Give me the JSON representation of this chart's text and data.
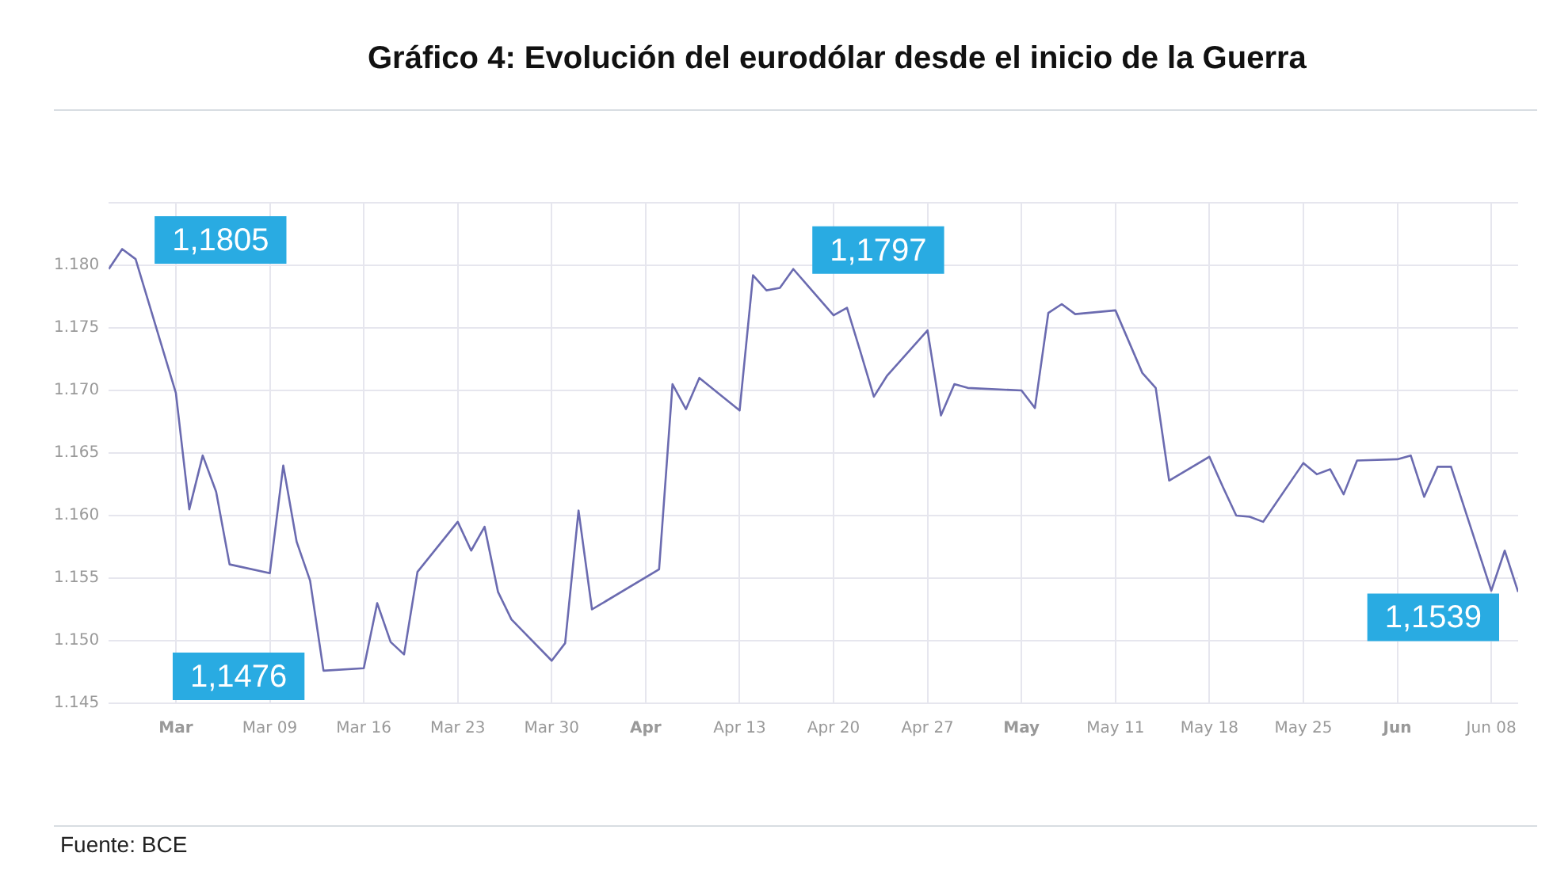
{
  "chart_data": {
    "type": "line",
    "title": "Gráfico 4: Evolución del eurodólar desde el inicio de la Guerra",
    "x": [
      "--02-25",
      "--02-26",
      "--02-27",
      "--03-02",
      "--03-03",
      "--03-04",
      "--03-05",
      "--03-06",
      "--03-09",
      "--03-10",
      "--03-11",
      "--03-12",
      "--03-13",
      "--03-16",
      "--03-17",
      "--03-18",
      "--03-19",
      "--03-20",
      "--03-23",
      "--03-24",
      "--03-25",
      "--03-26",
      "--03-27",
      "--03-30",
      "--03-31",
      "--04-01",
      "--04-02",
      "--04-07",
      "--04-08",
      "--04-09",
      "--04-10",
      "--04-13",
      "--04-14",
      "--04-15",
      "--04-16",
      "--04-17",
      "--04-20",
      "--04-21",
      "--04-22",
      "--04-23",
      "--04-24",
      "--04-27",
      "--04-28",
      "--04-29",
      "--04-30",
      "--05-04",
      "--05-05",
      "--05-06",
      "--05-07",
      "--05-08",
      "--05-11",
      "--05-12",
      "--05-13",
      "--05-14",
      "--05-15",
      "--05-18",
      "--05-19",
      "--05-20",
      "--05-21",
      "--05-22",
      "--05-25",
      "--05-26",
      "--05-27",
      "--05-28",
      "--05-29",
      "--06-01",
      "--06-02",
      "--06-03",
      "--06-04",
      "--06-05",
      "--06-08",
      "--06-09",
      "--06-10"
    ],
    "series": [
      {
        "color": "#6b6bb0",
        "values": [
          1.1797,
          1.1813,
          1.1805,
          1.1698,
          1.1605,
          1.1648,
          1.1619,
          1.1561,
          1.1554,
          1.164,
          1.1579,
          1.1548,
          1.1476,
          1.1478,
          1.153,
          1.1499,
          1.1489,
          1.1555,
          1.1595,
          1.1572,
          1.1591,
          1.1539,
          1.1517,
          1.1484,
          1.1498,
          1.1604,
          1.1525,
          1.1557,
          1.1705,
          1.1685,
          1.171,
          1.1684,
          1.1792,
          1.178,
          1.1782,
          1.1797,
          1.176,
          1.1766,
          1.1731,
          1.1695,
          1.1712,
          1.1748,
          1.168,
          1.1705,
          1.1702,
          1.17,
          1.1686,
          1.1762,
          1.1769,
          1.1761,
          1.1764,
          1.1739,
          1.1714,
          1.1702,
          1.1628,
          1.1647,
          1.1623,
          1.16,
          1.1599,
          1.1595,
          1.1642,
          1.1633,
          1.1637,
          1.1617,
          1.1644,
          1.1645,
          1.1648,
          1.1615,
          1.1639,
          1.1639,
          1.154,
          1.1572,
          1.1539
        ]
      }
    ],
    "xlim": [
      "--02-25",
      "--06-10"
    ],
    "xticks": [
      {
        "value": "--03-02",
        "label": "Mar"
      },
      {
        "value": "--03-09",
        "label": "Mar 09"
      },
      {
        "value": "--03-16",
        "label": "Mar 16"
      },
      {
        "value": "--03-23",
        "label": "Mar 23"
      },
      {
        "value": "--03-30",
        "label": "Mar 30"
      },
      {
        "value": "--04-06",
        "label": "Apr"
      },
      {
        "value": "--04-13",
        "label": "Apr 13"
      },
      {
        "value": "--04-20",
        "label": "Apr 20"
      },
      {
        "value": "--04-27",
        "label": "Apr 27"
      },
      {
        "value": "--05-04",
        "label": "May"
      },
      {
        "value": "--05-11",
        "label": "May 11"
      },
      {
        "value": "--05-18",
        "label": "May 18"
      },
      {
        "value": "--05-25",
        "label": "May 25"
      },
      {
        "value": "--06-01",
        "label": "Jun"
      },
      {
        "value": "--06-08",
        "label": "Jun 08"
      }
    ],
    "ylim": [
      1.145,
      1.185
    ],
    "yticks": [
      {
        "value": 1.145,
        "label": "1.145"
      },
      {
        "value": 1.15,
        "label": "1.150"
      },
      {
        "value": 1.155,
        "label": "1.155"
      },
      {
        "value": 1.16,
        "label": "1.160"
      },
      {
        "value": 1.165,
        "label": "1.165"
      },
      {
        "value": 1.17,
        "label": "1.170"
      },
      {
        "value": 1.175,
        "label": "1.175"
      },
      {
        "value": 1.18,
        "label": "1.180"
      },
      {
        "value": 1.185,
        "label": null
      }
    ],
    "grid": true,
    "legend": false,
    "marker": "none",
    "line_style": "solid",
    "annotations": [
      {
        "text": "1,1805",
        "x": "--02-27",
        "y": 1.1805
      },
      {
        "text": "1,1476",
        "x": "--03-13",
        "y": 1.1476
      },
      {
        "text": "1,1797",
        "x": "--04-17",
        "y": 1.1797
      },
      {
        "text": "1,1539",
        "x": "--06-10",
        "y": 1.1539
      },
      "Fuente: BCE"
    ]
  }
}
